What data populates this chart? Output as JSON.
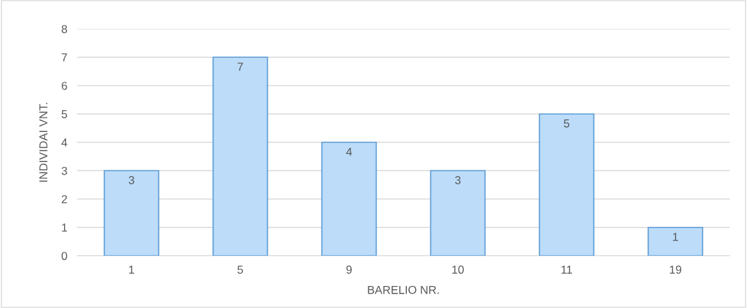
{
  "chart_data": {
    "type": "bar",
    "xlabel": "BARELIO NR.",
    "ylabel": "INDIVIDAI VNT.",
    "categories": [
      "1",
      "5",
      "9",
      "10",
      "11",
      "19"
    ],
    "values": [
      3,
      7,
      4,
      3,
      5,
      1
    ],
    "color": "#bcdcfa",
    "ylim": [
      0,
      8
    ],
    "yticks": [
      0,
      1,
      2,
      3,
      4,
      5,
      6,
      7,
      8
    ],
    "grid": "y",
    "data_labels": true
  }
}
